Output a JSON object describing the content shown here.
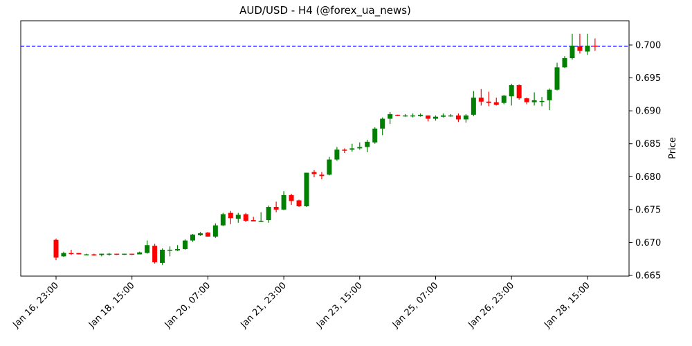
{
  "chart_data": {
    "type": "candlestick",
    "title": "AUD/USD - H4 (@forex_ua_news)",
    "xlabel": "",
    "ylabel": "Price",
    "ylim": [
      0.665,
      0.7035
    ],
    "y_ticks": [
      "0.665",
      "0.670",
      "0.675",
      "0.680",
      "0.685",
      "0.690",
      "0.695",
      "0.700"
    ],
    "x_ticks": [
      {
        "index": 0,
        "label": "Jan 16, 23:00"
      },
      {
        "index": 10,
        "label": "Jan 18, 15:00"
      },
      {
        "index": 20,
        "label": "Jan 20, 07:00"
      },
      {
        "index": 30,
        "label": "Jan 21, 23:00"
      },
      {
        "index": 40,
        "label": "Jan 23, 15:00"
      },
      {
        "index": 50,
        "label": "Jan 25, 07:00"
      },
      {
        "index": 60,
        "label": "Jan 26, 23:00"
      },
      {
        "index": 70,
        "label": "Jan 28, 15:00"
      }
    ],
    "horizontal_line": {
      "value": 0.6998,
      "color": "#0000ff",
      "style": "dashed"
    },
    "up_color": "#008000",
    "down_color": "#ff0000",
    "candles": [
      {
        "o": 0.6704,
        "h": 0.6706,
        "l": 0.6673,
        "c": 0.6677
      },
      {
        "o": 0.6679,
        "h": 0.6686,
        "l": 0.6678,
        "c": 0.6684
      },
      {
        "o": 0.6684,
        "h": 0.6689,
        "l": 0.6681,
        "c": 0.6683
      },
      {
        "o": 0.6684,
        "h": 0.6684,
        "l": 0.6682,
        "c": 0.6682
      },
      {
        "o": 0.6682,
        "h": 0.6683,
        "l": 0.6681,
        "c": 0.6682
      },
      {
        "o": 0.6682,
        "h": 0.6683,
        "l": 0.668,
        "c": 0.6681
      },
      {
        "o": 0.6681,
        "h": 0.6683,
        "l": 0.6679,
        "c": 0.6683
      },
      {
        "o": 0.6682,
        "h": 0.6684,
        "l": 0.668,
        "c": 0.6683
      },
      {
        "o": 0.6683,
        "h": 0.6683,
        "l": 0.6681,
        "c": 0.6682
      },
      {
        "o": 0.6682,
        "h": 0.6683,
        "l": 0.6681,
        "c": 0.6683
      },
      {
        "o": 0.6683,
        "h": 0.6683,
        "l": 0.6681,
        "c": 0.6682
      },
      {
        "o": 0.6682,
        "h": 0.6686,
        "l": 0.6682,
        "c": 0.6685
      },
      {
        "o": 0.6684,
        "h": 0.6703,
        "l": 0.6683,
        "c": 0.6696
      },
      {
        "o": 0.6695,
        "h": 0.6698,
        "l": 0.6668,
        "c": 0.667
      },
      {
        "o": 0.6669,
        "h": 0.6691,
        "l": 0.6666,
        "c": 0.6689
      },
      {
        "o": 0.6688,
        "h": 0.6694,
        "l": 0.6679,
        "c": 0.6689
      },
      {
        "o": 0.6688,
        "h": 0.6696,
        "l": 0.6687,
        "c": 0.669
      },
      {
        "o": 0.669,
        "h": 0.6705,
        "l": 0.6689,
        "c": 0.6703
      },
      {
        "o": 0.6703,
        "h": 0.6713,
        "l": 0.6701,
        "c": 0.6712
      },
      {
        "o": 0.6711,
        "h": 0.6716,
        "l": 0.671,
        "c": 0.6714
      },
      {
        "o": 0.6715,
        "h": 0.6716,
        "l": 0.6709,
        "c": 0.6709
      },
      {
        "o": 0.6709,
        "h": 0.6729,
        "l": 0.6707,
        "c": 0.6726
      },
      {
        "o": 0.6726,
        "h": 0.6745,
        "l": 0.6725,
        "c": 0.6743
      },
      {
        "o": 0.6745,
        "h": 0.6748,
        "l": 0.6728,
        "c": 0.6737
      },
      {
        "o": 0.6736,
        "h": 0.6745,
        "l": 0.673,
        "c": 0.6742
      },
      {
        "o": 0.6743,
        "h": 0.6745,
        "l": 0.6731,
        "c": 0.6733
      },
      {
        "o": 0.6734,
        "h": 0.6739,
        "l": 0.6732,
        "c": 0.6732
      },
      {
        "o": 0.6732,
        "h": 0.6746,
        "l": 0.6731,
        "c": 0.6733
      },
      {
        "o": 0.6734,
        "h": 0.6756,
        "l": 0.673,
        "c": 0.6754
      },
      {
        "o": 0.6754,
        "h": 0.6762,
        "l": 0.6746,
        "c": 0.675
      },
      {
        "o": 0.675,
        "h": 0.6778,
        "l": 0.6749,
        "c": 0.6772
      },
      {
        "o": 0.6772,
        "h": 0.6774,
        "l": 0.6757,
        "c": 0.6763
      },
      {
        "o": 0.6764,
        "h": 0.6765,
        "l": 0.6754,
        "c": 0.6755
      },
      {
        "o": 0.6755,
        "h": 0.6806,
        "l": 0.6754,
        "c": 0.6806
      },
      {
        "o": 0.6807,
        "h": 0.681,
        "l": 0.6799,
        "c": 0.6804
      },
      {
        "o": 0.6803,
        "h": 0.6807,
        "l": 0.6796,
        "c": 0.6801
      },
      {
        "o": 0.6803,
        "h": 0.683,
        "l": 0.6802,
        "c": 0.6826
      },
      {
        "o": 0.6826,
        "h": 0.6845,
        "l": 0.6824,
        "c": 0.6841
      },
      {
        "o": 0.6841,
        "h": 0.6843,
        "l": 0.6836,
        "c": 0.684
      },
      {
        "o": 0.6841,
        "h": 0.685,
        "l": 0.6838,
        "c": 0.6843
      },
      {
        "o": 0.6843,
        "h": 0.6852,
        "l": 0.6841,
        "c": 0.6845
      },
      {
        "o": 0.6845,
        "h": 0.6856,
        "l": 0.6837,
        "c": 0.6853
      },
      {
        "o": 0.6852,
        "h": 0.6875,
        "l": 0.685,
        "c": 0.6873
      },
      {
        "o": 0.6873,
        "h": 0.689,
        "l": 0.6863,
        "c": 0.6888
      },
      {
        "o": 0.6888,
        "h": 0.6898,
        "l": 0.688,
        "c": 0.6895
      },
      {
        "o": 0.6894,
        "h": 0.6894,
        "l": 0.6892,
        "c": 0.6893
      },
      {
        "o": 0.6893,
        "h": 0.6895,
        "l": 0.6891,
        "c": 0.6893
      },
      {
        "o": 0.6893,
        "h": 0.6896,
        "l": 0.689,
        "c": 0.6893
      },
      {
        "o": 0.6892,
        "h": 0.6896,
        "l": 0.6891,
        "c": 0.6894
      },
      {
        "o": 0.6893,
        "h": 0.6893,
        "l": 0.6884,
        "c": 0.6888
      },
      {
        "o": 0.6888,
        "h": 0.6893,
        "l": 0.6885,
        "c": 0.6891
      },
      {
        "o": 0.6891,
        "h": 0.6896,
        "l": 0.689,
        "c": 0.6893
      },
      {
        "o": 0.6893,
        "h": 0.6895,
        "l": 0.6891,
        "c": 0.6893
      },
      {
        "o": 0.6893,
        "h": 0.6896,
        "l": 0.6883,
        "c": 0.6887
      },
      {
        "o": 0.6887,
        "h": 0.6895,
        "l": 0.6882,
        "c": 0.6893
      },
      {
        "o": 0.6894,
        "h": 0.693,
        "l": 0.6892,
        "c": 0.692
      },
      {
        "o": 0.692,
        "h": 0.6933,
        "l": 0.6908,
        "c": 0.6914
      },
      {
        "o": 0.6914,
        "h": 0.6929,
        "l": 0.6907,
        "c": 0.6912
      },
      {
        "o": 0.6913,
        "h": 0.692,
        "l": 0.6908,
        "c": 0.6909
      },
      {
        "o": 0.6912,
        "h": 0.6924,
        "l": 0.691,
        "c": 0.6923
      },
      {
        "o": 0.6922,
        "h": 0.6941,
        "l": 0.6908,
        "c": 0.6939
      },
      {
        "o": 0.6939,
        "h": 0.694,
        "l": 0.6917,
        "c": 0.6919
      },
      {
        "o": 0.6919,
        "h": 0.692,
        "l": 0.691,
        "c": 0.6913
      },
      {
        "o": 0.6913,
        "h": 0.6928,
        "l": 0.6908,
        "c": 0.6916
      },
      {
        "o": 0.6915,
        "h": 0.6921,
        "l": 0.6907,
        "c": 0.6915
      },
      {
        "o": 0.6916,
        "h": 0.6934,
        "l": 0.6901,
        "c": 0.6932
      },
      {
        "o": 0.6932,
        "h": 0.6973,
        "l": 0.6931,
        "c": 0.6966
      },
      {
        "o": 0.6966,
        "h": 0.6983,
        "l": 0.6965,
        "c": 0.698
      },
      {
        "o": 0.698,
        "h": 0.7017,
        "l": 0.6978,
        "c": 0.6999
      },
      {
        "o": 0.6998,
        "h": 0.7017,
        "l": 0.6987,
        "c": 0.6991
      },
      {
        "o": 0.699,
        "h": 0.7017,
        "l": 0.6985,
        "c": 0.6999
      },
      {
        "o": 0.6999,
        "h": 0.701,
        "l": 0.6991,
        "c": 0.6998
      }
    ]
  }
}
